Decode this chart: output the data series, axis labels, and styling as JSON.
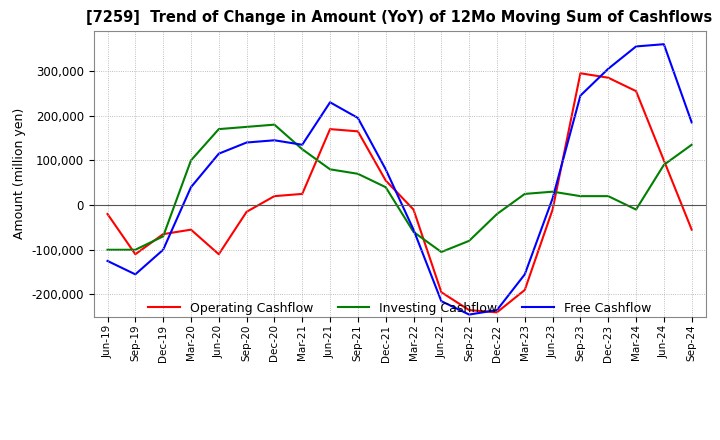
{
  "title": "[7259]  Trend of Change in Amount (YoY) of 12Mo Moving Sum of Cashflows",
  "ylabel": "Amount (million yen)",
  "ylim": [
    -250000,
    390000
  ],
  "yticks": [
    -200000,
    -100000,
    0,
    100000,
    200000,
    300000
  ],
  "background_color": "#ffffff",
  "grid_color": "#aaaaaa",
  "labels": [
    "Jun-19",
    "Sep-19",
    "Dec-19",
    "Mar-20",
    "Jun-20",
    "Sep-20",
    "Dec-20",
    "Mar-21",
    "Jun-21",
    "Sep-21",
    "Dec-21",
    "Mar-22",
    "Jun-22",
    "Sep-22",
    "Dec-22",
    "Mar-23",
    "Jun-23",
    "Sep-23",
    "Dec-23",
    "Mar-24",
    "Jun-24",
    "Sep-24"
  ],
  "operating": [
    -20000,
    -110000,
    -65000,
    -55000,
    -110000,
    -15000,
    20000,
    25000,
    170000,
    165000,
    55000,
    -10000,
    -195000,
    -235000,
    -240000,
    -190000,
    -10000,
    295000,
    285000,
    255000,
    100000,
    -55000
  ],
  "investing": [
    -100000,
    -100000,
    -70000,
    100000,
    170000,
    175000,
    180000,
    125000,
    80000,
    70000,
    40000,
    -60000,
    -105000,
    -80000,
    -20000,
    25000,
    30000,
    20000,
    20000,
    -10000,
    90000,
    135000
  ],
  "free": [
    -125000,
    -155000,
    -100000,
    40000,
    115000,
    140000,
    145000,
    135000,
    230000,
    195000,
    80000,
    -55000,
    -215000,
    -245000,
    -235000,
    -155000,
    15000,
    245000,
    305000,
    355000,
    360000,
    185000
  ],
  "operating_color": "#ff0000",
  "investing_color": "#008000",
  "free_color": "#0000ff",
  "legend_labels": [
    "Operating Cashflow",
    "Investing Cashflow",
    "Free Cashflow"
  ]
}
